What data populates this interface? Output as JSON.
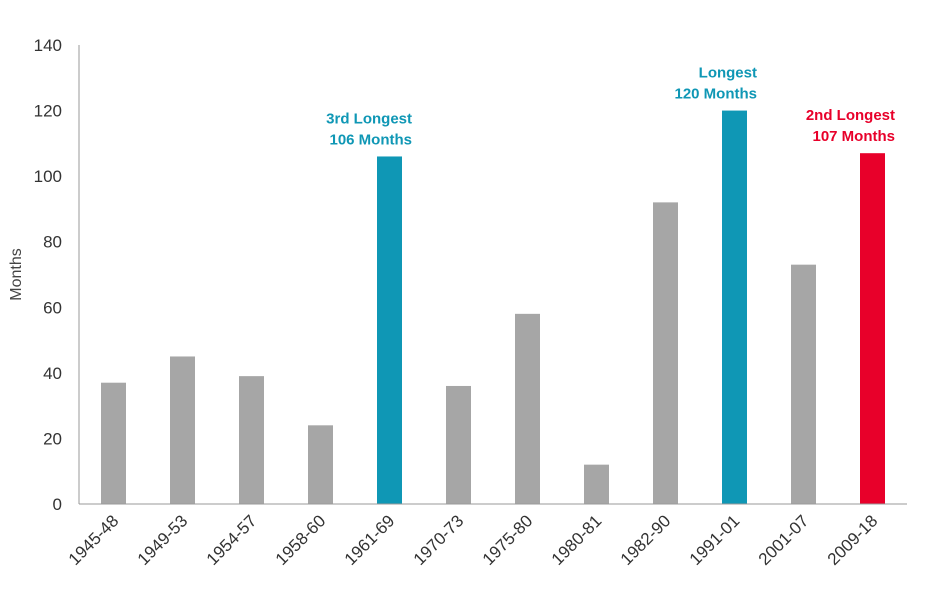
{
  "chart_data": {
    "type": "bar",
    "title": "",
    "xlabel": "",
    "ylabel": "Months",
    "ylim": [
      0,
      140
    ],
    "yticks": [
      0,
      20,
      40,
      60,
      80,
      100,
      120,
      140
    ],
    "grid": false,
    "categories": [
      "1945-48",
      "1949-53",
      "1954-57",
      "1958-60",
      "1961-69",
      "1970-73",
      "1975-80",
      "1980-81",
      "1982-90",
      "1991-01",
      "2001-07",
      "2009-18"
    ],
    "values": [
      37,
      45,
      39,
      24,
      106,
      36,
      58,
      12,
      92,
      120,
      73,
      107
    ],
    "colors": {
      "default": "#a6a6a6",
      "highlight_blue": "#0f97b5",
      "highlight_red": "#e8002a",
      "axis": "#999999"
    },
    "highlights": [
      {
        "category": "1961-69",
        "color": "#0f97b5",
        "lines": [
          "3rd Longest",
          "106 Months"
        ]
      },
      {
        "category": "1991-01",
        "color": "#0f97b5",
        "lines": [
          "Longest",
          "120 Months"
        ]
      },
      {
        "category": "2009-18",
        "color": "#e8002a",
        "lines": [
          "2nd Longest",
          "107 Months"
        ]
      }
    ]
  }
}
